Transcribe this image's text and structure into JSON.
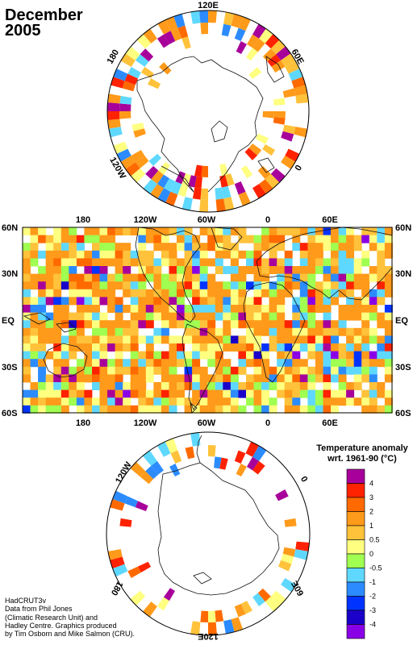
{
  "title": {
    "month": "December",
    "year": "2005"
  },
  "north_panel": {
    "labels": {
      "top": "120E",
      "right": "60E",
      "bottom_right": "0",
      "bottom_left": "120W",
      "left": "180"
    }
  },
  "map_panel": {
    "top_lon": [
      "180",
      "120W",
      "60W",
      "0",
      "60E"
    ],
    "bottom_lon": [
      "180",
      "120W",
      "60W",
      "0",
      "60E"
    ],
    "lat_left": [
      "60N",
      "30N",
      "EQ",
      "30S",
      "60S"
    ],
    "lat_right": [
      "60N",
      "30N",
      "EQ",
      "30S",
      "60S"
    ]
  },
  "south_panel": {
    "labels": {
      "top_left": "120W",
      "right": "0",
      "left": "180",
      "bottom_right": "60E",
      "bottom": "120E"
    }
  },
  "legend": {
    "title_line1": "Temperature anomaly",
    "title_line2": "wrt. 1961-90  (°C)",
    "levels": [
      {
        "label": "4",
        "color": "#a8009a"
      },
      {
        "label": "3",
        "color": "#ff2200"
      },
      {
        "label": "2",
        "color": "#ff6a00"
      },
      {
        "label": "1",
        "color": "#ff9a1a"
      },
      {
        "label": "0.5",
        "color": "#ffc23a"
      },
      {
        "label": "0",
        "color": "#ffff80"
      },
      {
        "label": "-0.5",
        "color": "#a0ff50"
      },
      {
        "label": "-1",
        "color": "#5fd8ff"
      },
      {
        "label": "-2",
        "color": "#2c8cff"
      },
      {
        "label": "-3",
        "color": "#0033ff"
      },
      {
        "label": "-4",
        "color": "#1a00c8"
      },
      {
        "label": "",
        "color": "#8a00e6"
      }
    ]
  },
  "credit": {
    "line1": "HadCRUT3v",
    "line2": "Data from Phil Jones",
    "line3": "(Climatic Research Unit) and",
    "line4": "Hadley Centre.  Graphics produced",
    "line5": "by Tim Osborn and Mike Salmon (CRU)."
  }
}
